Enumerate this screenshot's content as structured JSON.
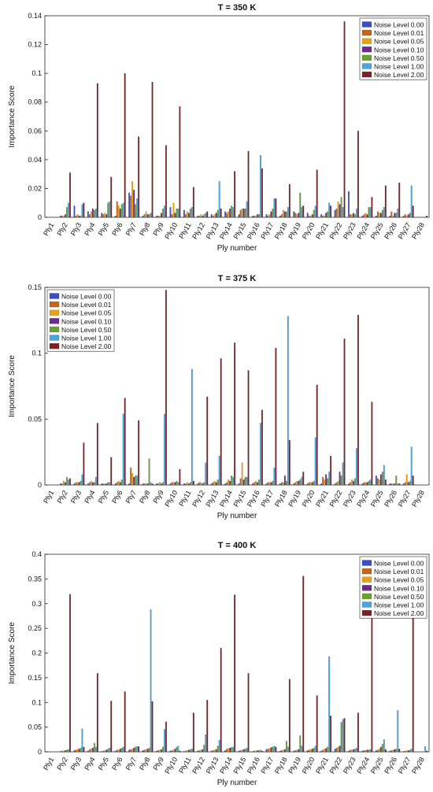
{
  "chart_data": [
    {
      "type": "bar",
      "title": "T = 350 K",
      "xlabel": "Ply number",
      "ylabel": "Importance Score",
      "ylim": [
        0,
        0.14
      ],
      "yticks": [
        0,
        0.02,
        0.04,
        0.06,
        0.08,
        0.1,
        0.12,
        0.14
      ],
      "ytick_labels": [
        "0",
        "0.02",
        "0.04",
        "0.06",
        "0.08",
        "0.1",
        "0.12",
        "0.14"
      ],
      "legend_position": "top-right",
      "categories": [
        "Ply1",
        "Ply2",
        "Ply3",
        "Ply4",
        "Ply5",
        "Ply6",
        "Ply7",
        "Ply8",
        "Ply9",
        "Ply10",
        "Ply11",
        "Ply12",
        "Ply13",
        "Ply14",
        "Ply15",
        "Ply16",
        "Ply17",
        "Ply18",
        "Ply19",
        "Ply20",
        "Ply21",
        "Ply22",
        "Ply23",
        "Ply24",
        "Ply25",
        "Ply26",
        "Ply27",
        "Ply28"
      ],
      "series": [
        {
          "name": "Noise Level 0.00",
          "color": "#3b4fc4",
          "values": [
            0,
            0.001,
            0.008,
            0.004,
            0.003,
            0.001,
            0.017,
            0.001,
            0.001,
            0.007,
            0.005,
            0.001,
            0.002,
            0.004,
            0.002,
            0.001,
            0.002,
            0.001,
            0.004,
            0.003,
            0.002,
            0.005,
            0.018,
            0.001,
            0.001,
            0.001,
            0.001,
            0
          ]
        },
        {
          "name": "Noise Level 0.01",
          "color": "#c0651f",
          "values": [
            0,
            0.001,
            0.001,
            0.002,
            0.002,
            0.011,
            0.015,
            0.002,
            0.001,
            0.002,
            0.002,
            0.001,
            0.001,
            0.003,
            0.005,
            0.001,
            0.001,
            0.002,
            0.003,
            0.001,
            0.001,
            0.006,
            0.002,
            0.002,
            0.004,
            0.004,
            0.002,
            0
          ]
        },
        {
          "name": "Noise Level 0.05",
          "color": "#e3a318",
          "values": [
            0,
            0.001,
            0.002,
            0.004,
            0.003,
            0.008,
            0.025,
            0.004,
            0.001,
            0.01,
            0.004,
            0.002,
            0.002,
            0.004,
            0.006,
            0.001,
            0.002,
            0.005,
            0.002,
            0.001,
            0.001,
            0.011,
            0.002,
            0.003,
            0.003,
            0.001,
            0.001,
            0
          ]
        },
        {
          "name": "Noise Level 0.10",
          "color": "#6b2d8c",
          "values": [
            0,
            0.002,
            0.001,
            0.006,
            0.002,
            0.006,
            0.019,
            0.002,
            0.003,
            0.003,
            0.003,
            0.001,
            0.003,
            0.006,
            0.006,
            0.002,
            0.004,
            0.004,
            0.003,
            0.002,
            0.003,
            0.009,
            0.003,
            0.002,
            0.003,
            0.003,
            0.002,
            0
          ]
        },
        {
          "name": "Noise Level 0.50",
          "color": "#6aa02c",
          "values": [
            0,
            0.007,
            0.001,
            0.005,
            0.01,
            0.009,
            0.009,
            0.002,
            0.006,
            0.006,
            0.006,
            0.002,
            0.005,
            0.008,
            0.006,
            0.002,
            0.006,
            0.004,
            0.017,
            0.005,
            0.004,
            0.014,
            0.002,
            0.007,
            0.005,
            0.003,
            0.003,
            0
          ]
        },
        {
          "name": "Noise Level 1.00",
          "color": "#4aa3e0",
          "values": [
            0,
            0.01,
            0.009,
            0.006,
            0.011,
            0.01,
            0.013,
            0.003,
            0.008,
            0.006,
            0.007,
            0.003,
            0.025,
            0.007,
            0.011,
            0.043,
            0.013,
            0.007,
            0.007,
            0.008,
            0.01,
            0.007,
            0.006,
            0.007,
            0.007,
            0.006,
            0.022,
            0
          ]
        },
        {
          "name": "Noise Level 2.00",
          "color": "#7b2326",
          "values": [
            0,
            0.031,
            0.01,
            0.093,
            0.028,
            0.1,
            0.056,
            0.094,
            0.05,
            0.077,
            0.021,
            0.004,
            0.006,
            0.032,
            0.046,
            0.034,
            0.013,
            0.023,
            0.008,
            0.033,
            0.008,
            0.136,
            0.06,
            0.014,
            0.022,
            0.024,
            0.008,
            0.001
          ]
        }
      ]
    },
    {
      "type": "bar",
      "title": "T = 375 K",
      "xlabel": "Ply number",
      "ylabel": "Importance Score",
      "ylim": [
        0,
        0.15
      ],
      "yticks": [
        0,
        0.05,
        0.1,
        0.15
      ],
      "ytick_labels": [
        "0",
        "0.05",
        "0.1",
        "0.15"
      ],
      "legend_position": "top-left",
      "categories": [
        "Ply1",
        "Ply2",
        "Ply3",
        "Ply4",
        "Ply5",
        "Ply6",
        "Ply7",
        "Ply8",
        "Ply9",
        "Ply10",
        "Ply11",
        "Ply12",
        "Ply13",
        "Ply14",
        "Ply15",
        "Ply16",
        "Ply17",
        "Ply18",
        "Ply19",
        "Ply20",
        "Ply21",
        "Ply22",
        "Ply23",
        "Ply24",
        "Ply25",
        "Ply26",
        "Ply27",
        "Ply28"
      ],
      "series": [
        {
          "name": "Noise Level 0.00",
          "color": "#3b4fc4",
          "values": [
            0,
            0.001,
            0.001,
            0.001,
            0.001,
            0.001,
            0.001,
            0.001,
            0.001,
            0.001,
            0.001,
            0.001,
            0.001,
            0.001,
            0.001,
            0.001,
            0.001,
            0.001,
            0.001,
            0.001,
            0.001,
            0.001,
            0.001,
            0.001,
            0.007,
            0.001,
            0.001,
            0
          ]
        },
        {
          "name": "Noise Level 0.01",
          "color": "#c0651f",
          "values": [
            0,
            0.001,
            0.002,
            0.002,
            0.001,
            0.002,
            0.013,
            0.001,
            0.001,
            0.002,
            0.001,
            0.002,
            0.002,
            0.002,
            0.005,
            0.002,
            0.002,
            0.002,
            0.002,
            0.002,
            0.006,
            0.002,
            0.002,
            0.002,
            0.005,
            0.001,
            0.002,
            0
          ]
        },
        {
          "name": "Noise Level 0.05",
          "color": "#e3a318",
          "values": [
            0,
            0.003,
            0.002,
            0.003,
            0.001,
            0.003,
            0.009,
            0.001,
            0.002,
            0.002,
            0.002,
            0.002,
            0.003,
            0.004,
            0.017,
            0.003,
            0.002,
            0.002,
            0.003,
            0.002,
            0.004,
            0.003,
            0.004,
            0.002,
            0.004,
            0.001,
            0.008,
            0
          ]
        },
        {
          "name": "Noise Level 0.10",
          "color": "#6b2d8c",
          "values": [
            0,
            0.002,
            0.002,
            0.002,
            0.001,
            0.002,
            0.006,
            0.001,
            0.001,
            0.002,
            0.001,
            0.001,
            0.002,
            0.003,
            0.004,
            0.002,
            0.002,
            0.007,
            0.003,
            0.002,
            0.008,
            0.01,
            0.003,
            0.002,
            0.008,
            0.001,
            0.002,
            0
          ]
        },
        {
          "name": "Noise Level 0.50",
          "color": "#6aa02c",
          "values": [
            0,
            0.006,
            0.003,
            0.002,
            0.002,
            0.004,
            0.007,
            0.02,
            0.002,
            0.003,
            0.002,
            0.002,
            0.004,
            0.007,
            0.006,
            0.004,
            0.003,
            0.003,
            0.004,
            0.003,
            0.005,
            0.007,
            0.005,
            0.003,
            0.01,
            0.007,
            0.003,
            0
          ]
        },
        {
          "name": "Noise Level 1.00",
          "color": "#4aa3e0",
          "values": [
            0,
            0.004,
            0.008,
            0.006,
            0.002,
            0.054,
            0.007,
            0.002,
            0.054,
            0.002,
            0.088,
            0.017,
            0.022,
            0.006,
            0.006,
            0.047,
            0.013,
            0.128,
            0.006,
            0.036,
            0.01,
            0.017,
            0.028,
            0.004,
            0.015,
            0.001,
            0.029,
            0
          ]
        },
        {
          "name": "Noise Level 2.00",
          "color": "#7b2326",
          "values": [
            0,
            0.005,
            0.032,
            0.047,
            0.021,
            0.066,
            0.049,
            0.001,
            0.148,
            0.012,
            0.003,
            0.067,
            0.096,
            0.108,
            0.087,
            0.057,
            0.104,
            0.034,
            0.01,
            0.076,
            0.022,
            0.111,
            0.129,
            0.063,
            0.004,
            0.001,
            0.007,
            0
          ]
        }
      ]
    },
    {
      "type": "bar",
      "title": "T = 400 K",
      "xlabel": "Ply number",
      "ylabel": "Importance Score",
      "ylim": [
        0,
        0.4
      ],
      "yticks": [
        0,
        0.05,
        0.1,
        0.15,
        0.2,
        0.25,
        0.3,
        0.35,
        0.4
      ],
      "ytick_labels": [
        "0",
        "0.05",
        "0.1",
        "0.15",
        "0.2",
        "0.25",
        "0.3",
        "0.35",
        "0.4"
      ],
      "legend_position": "top-right",
      "categories": [
        "Ply1",
        "Ply2",
        "Ply3",
        "Ply4",
        "Ply5",
        "Ply6",
        "Ply7",
        "Ply8",
        "Ply9",
        "Ply10",
        "Ply11",
        "Ply12",
        "Ply13",
        "Ply14",
        "Ply15",
        "Ply16",
        "Ply17",
        "Ply18",
        "Ply19",
        "Ply20",
        "Ply21",
        "Ply22",
        "Ply23",
        "Ply24",
        "Ply25",
        "Ply26",
        "Ply27",
        "Ply28"
      ],
      "series": [
        {
          "name": "Noise Level 0.00",
          "color": "#3b4fc4",
          "values": [
            0,
            0.001,
            0.003,
            0.002,
            0.001,
            0.002,
            0.004,
            0.003,
            0.002,
            0.002,
            0.001,
            0.002,
            0.002,
            0.003,
            0.002,
            0.001,
            0.005,
            0.002,
            0.002,
            0.003,
            0.002,
            0.006,
            0.002,
            0.002,
            0.003,
            0.002,
            0.001,
            0
          ]
        },
        {
          "name": "Noise Level 0.01",
          "color": "#c0651f",
          "values": [
            0,
            0.002,
            0.004,
            0.005,
            0.002,
            0.004,
            0.005,
            0.004,
            0.003,
            0.003,
            0.002,
            0.003,
            0.003,
            0.006,
            0.003,
            0.002,
            0.006,
            0.003,
            0.003,
            0.004,
            0.004,
            0.008,
            0.004,
            0.003,
            0.004,
            0.003,
            0.002,
            0
          ]
        },
        {
          "name": "Noise Level 0.05",
          "color": "#e3a318",
          "values": [
            0,
            0.002,
            0.005,
            0.006,
            0.003,
            0.004,
            0.006,
            0.005,
            0.004,
            0.004,
            0.003,
            0.004,
            0.004,
            0.007,
            0.004,
            0.002,
            0.007,
            0.004,
            0.004,
            0.005,
            0.006,
            0.01,
            0.004,
            0.003,
            0.006,
            0.004,
            0.002,
            0
          ]
        },
        {
          "name": "Noise Level 0.10",
          "color": "#6b2d8c",
          "values": [
            0,
            0.003,
            0.006,
            0.008,
            0.004,
            0.006,
            0.008,
            0.006,
            0.005,
            0.006,
            0.004,
            0.005,
            0.005,
            0.008,
            0.005,
            0.003,
            0.009,
            0.005,
            0.005,
            0.006,
            0.007,
            0.012,
            0.005,
            0.004,
            0.01,
            0.005,
            0.003,
            0
          ]
        },
        {
          "name": "Noise Level 0.50",
          "color": "#6aa02c",
          "values": [
            0,
            0.004,
            0.008,
            0.018,
            0.006,
            0.008,
            0.01,
            0.008,
            0.01,
            0.01,
            0.005,
            0.014,
            0.012,
            0.009,
            0.006,
            0.003,
            0.01,
            0.022,
            0.033,
            0.008,
            0.01,
            0.06,
            0.006,
            0.004,
            0.016,
            0.006,
            0.004,
            0
          ]
        },
        {
          "name": "Noise Level 1.00",
          "color": "#4aa3e0",
          "values": [
            0,
            0.005,
            0.047,
            0.01,
            0.008,
            0.01,
            0.011,
            0.288,
            0.046,
            0.012,
            0.006,
            0.035,
            0.024,
            0.01,
            0.008,
            0.004,
            0.012,
            0.01,
            0.012,
            0.012,
            0.193,
            0.066,
            0.008,
            0.005,
            0.025,
            0.084,
            0.006,
            0.011
          ]
        },
        {
          "name": "Noise Level 2.00",
          "color": "#7b2326",
          "values": [
            0,
            0.319,
            0.01,
            0.159,
            0.103,
            0.122,
            0.011,
            0.102,
            0.061,
            0.002,
            0.079,
            0.105,
            0.21,
            0.318,
            0.159,
            0.002,
            0.01,
            0.147,
            0.356,
            0.114,
            0.073,
            0.068,
            0.079,
            0.311,
            0.005,
            0.006,
            0.301,
            0.002
          ]
        }
      ]
    }
  ]
}
